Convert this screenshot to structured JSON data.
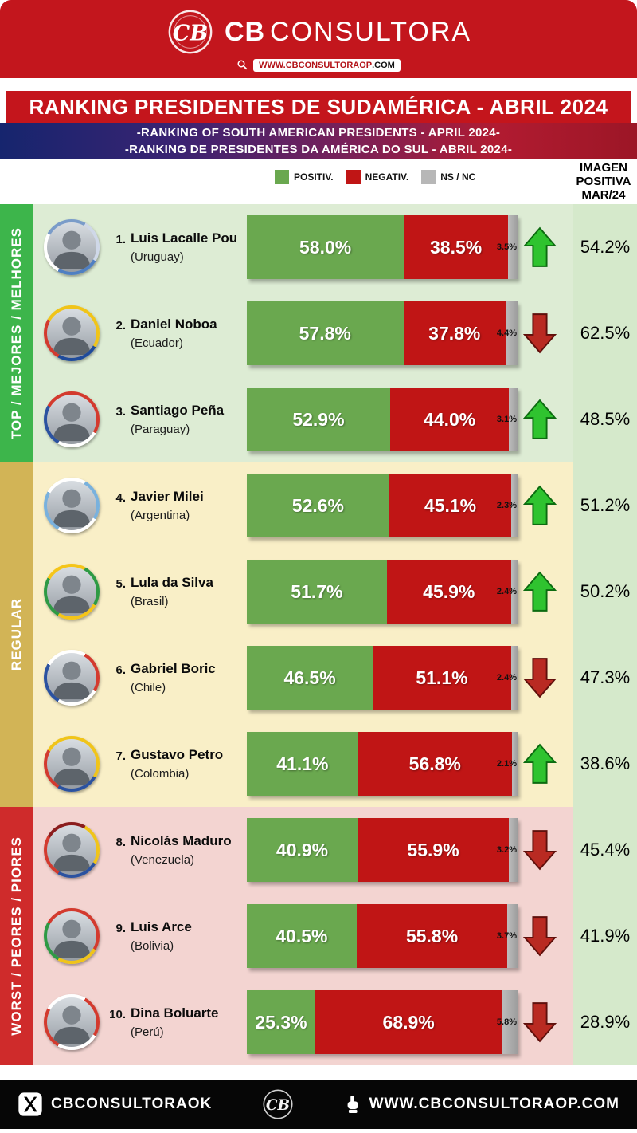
{
  "brand": {
    "name_bold": "CB",
    "name_light": "CONSULTORA",
    "website_main": "WWW.CBCONSULTORAOP",
    "website_tld": ".COM"
  },
  "banner": {
    "title": "RANKING PRESIDENTES DE SUDAMÉRICA - ABRIL 2024",
    "subtitle_en": "-RANKING OF SOUTH AMERICAN PRESIDENTS - APRIL 2024-",
    "subtitle_pt": "-RANKING DE PRESIDENTES DA AMÉRICA DO SUL - ABRIL 2024-"
  },
  "legend": {
    "positive": "POSITIV.",
    "negative": "NEGATIV.",
    "nsnc": "NS / NC"
  },
  "right_header": {
    "line1": "IMAGEN",
    "line2": "POSITIVA",
    "line3": "MAR/24"
  },
  "colors": {
    "header_red": "#c3161d",
    "positive": "#6aa84f",
    "negative": "#c01515",
    "nsnc": "#b7b7b7",
    "arrow_up": "#2fc32f",
    "arrow_down": "#b92a22",
    "prev_col_bg": "#d5e9cb"
  },
  "groups": [
    {
      "label": "TOP / MEJORES / MELHORES",
      "strip_color": "#3db54b",
      "row_bg": "#ddecd4",
      "row_indexes": [
        0,
        1,
        2
      ]
    },
    {
      "label": "REGULAR",
      "strip_color": "#d2b456",
      "row_bg": "#f9efc7",
      "row_indexes": [
        3,
        4,
        5,
        6
      ]
    },
    {
      "label": "WORST / PEORES / PIORES",
      "strip_color": "#cf2b2b",
      "row_bg": "#f3d4d1",
      "row_indexes": [
        7,
        8,
        9
      ]
    }
  ],
  "rows": [
    {
      "rank": "1.",
      "name": "Luis Lacalle Pou",
      "country": "(Uruguay)",
      "positive": "58.0%",
      "negative": "38.5%",
      "nsnc": "3.5%",
      "positive_value": 58.0,
      "negative_value": 38.5,
      "nsnc_value": 3.5,
      "trend": "up",
      "previous": "54.2%",
      "ring_colors": [
        "#cfd8e8",
        "#4f7fc2",
        "#ffffff",
        "#7a9cc9"
      ]
    },
    {
      "rank": "2.",
      "name": "Daniel Noboa",
      "country": "(Ecuador)",
      "positive": "57.8%",
      "negative": "37.8%",
      "nsnc": "4.4%",
      "positive_value": 57.8,
      "negative_value": 37.8,
      "nsnc_value": 4.4,
      "trend": "down",
      "previous": "62.5%",
      "ring_colors": [
        "#f0c419",
        "#1f4b9b",
        "#d33a2e",
        "#f0c419"
      ]
    },
    {
      "rank": "3.",
      "name": "Santiago Peña",
      "country": "(Paraguay)",
      "positive": "52.9%",
      "negative": "44.0%",
      "nsnc": "3.1%",
      "positive_value": 52.9,
      "negative_value": 44.0,
      "nsnc_value": 3.1,
      "trend": "up",
      "previous": "48.5%",
      "ring_colors": [
        "#d33a2e",
        "#ffffff",
        "#2b52a0",
        "#d33a2e"
      ]
    },
    {
      "rank": "4.",
      "name": "Javier Milei",
      "country": "(Argentina)",
      "positive": "52.6%",
      "negative": "45.1%",
      "nsnc": "2.3%",
      "positive_value": 52.6,
      "negative_value": 45.1,
      "nsnc_value": 2.3,
      "trend": "up",
      "previous": "51.2%",
      "ring_colors": [
        "#79b1dd",
        "#ffffff",
        "#79b1dd",
        "#ffffff"
      ]
    },
    {
      "rank": "5.",
      "name": "Lula da Silva",
      "country": "(Brasil)",
      "positive": "51.7%",
      "negative": "45.9%",
      "nsnc": "2.4%",
      "positive_value": 51.7,
      "negative_value": 45.9,
      "nsnc_value": 2.4,
      "trend": "up",
      "previous": "50.2%",
      "ring_colors": [
        "#2e9a44",
        "#f5c518",
        "#2e9a44",
        "#f5c518"
      ]
    },
    {
      "rank": "6.",
      "name": "Gabriel Boric",
      "country": "(Chile)",
      "positive": "46.5%",
      "negative": "51.1%",
      "nsnc": "2.4%",
      "positive_value": 46.5,
      "negative_value": 51.1,
      "nsnc_value": 2.4,
      "trend": "down",
      "previous": "47.3%",
      "ring_colors": [
        "#d33a2e",
        "#ffffff",
        "#2b52a0",
        "#ffffff"
      ]
    },
    {
      "rank": "7.",
      "name": "Gustavo Petro",
      "country": "(Colombia)",
      "positive": "41.1%",
      "negative": "56.8%",
      "nsnc": "2.1%",
      "positive_value": 41.1,
      "negative_value": 56.8,
      "nsnc_value": 2.1,
      "trend": "up",
      "previous": "38.6%",
      "ring_colors": [
        "#f0c419",
        "#2b52a0",
        "#d33a2e",
        "#f0c419"
      ]
    },
    {
      "rank": "8.",
      "name": "Nicolás Maduro",
      "country": "(Venezuela)",
      "positive": "40.9%",
      "negative": "55.9%",
      "nsnc": "3.2%",
      "positive_value": 40.9,
      "negative_value": 55.9,
      "nsnc_value": 3.2,
      "trend": "down",
      "previous": "45.4%",
      "ring_colors": [
        "#f0c419",
        "#2b52a0",
        "#d33a2e",
        "#8b1d1d"
      ]
    },
    {
      "rank": "9.",
      "name": "Luis Arce",
      "country": "(Bolivia)",
      "positive": "40.5%",
      "negative": "55.8%",
      "nsnc": "3.7%",
      "positive_value": 40.5,
      "negative_value": 55.8,
      "nsnc_value": 3.7,
      "trend": "down",
      "previous": "41.9%",
      "ring_colors": [
        "#d33a2e",
        "#f0c419",
        "#2e9a44",
        "#d33a2e"
      ]
    },
    {
      "rank": "10.",
      "name": "Dina Boluarte",
      "country": "(Perú)",
      "positive": "25.3%",
      "negative": "68.9%",
      "nsnc": "5.8%",
      "positive_value": 25.3,
      "negative_value": 68.9,
      "nsnc_value": 5.8,
      "trend": "down",
      "previous": "28.9%",
      "ring_colors": [
        "#d33a2e",
        "#ffffff",
        "#d33a2e",
        "#ffffff"
      ]
    }
  ],
  "footer": {
    "twitter": "CBCONSULTORAOK",
    "website": "WWW.CBCONSULTORAOP.COM"
  },
  "chart_data": {
    "type": "bar",
    "orientation": "horizontal_stacked",
    "title": "RANKING PRESIDENTES DE SUDAMÉRICA - ABRIL 2024",
    "categories": [
      "Luis Lacalle Pou (Uruguay)",
      "Daniel Noboa (Ecuador)",
      "Santiago Peña (Paraguay)",
      "Javier Milei (Argentina)",
      "Lula da Silva (Brasil)",
      "Gabriel Boric (Chile)",
      "Gustavo Petro (Colombia)",
      "Nicolás Maduro (Venezuela)",
      "Luis Arce (Bolivia)",
      "Dina Boluarte (Perú)"
    ],
    "series": [
      {
        "name": "POSITIV.",
        "color": "#6aa84f",
        "values": [
          58.0,
          57.8,
          52.9,
          52.6,
          51.7,
          46.5,
          41.1,
          40.9,
          40.5,
          25.3
        ]
      },
      {
        "name": "NEGATIV.",
        "color": "#c01515",
        "values": [
          38.5,
          37.8,
          44.0,
          45.1,
          45.9,
          51.1,
          56.8,
          55.9,
          55.8,
          68.9
        ]
      },
      {
        "name": "NS / NC",
        "color": "#b7b7b7",
        "values": [
          3.5,
          4.4,
          3.1,
          2.3,
          2.4,
          2.4,
          2.1,
          3.2,
          3.7,
          5.8
        ]
      },
      {
        "name": "IMAGEN POSITIVA MAR/24",
        "values": [
          54.2,
          62.5,
          48.5,
          51.2,
          50.2,
          47.3,
          38.6,
          45.4,
          41.9,
          28.9
        ]
      }
    ],
    "xlim": [
      0,
      100
    ],
    "legend_position": "top",
    "grid": false
  }
}
